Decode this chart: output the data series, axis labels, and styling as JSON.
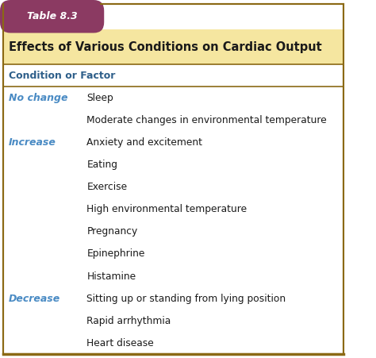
{
  "table_label": "Table 8.3",
  "title": "Effects of Various Conditions on Cardiac Output",
  "col_header": "Condition or Factor",
  "tab_label_bg": "#8B3A62",
  "tab_label_color": "#FFFFFF",
  "title_bg": "#F5E6A0",
  "title_color": "#1A1A1A",
  "header_color": "#2E5F8A",
  "body_bg": "#FFFFFF",
  "condition_color": "#4A8BC4",
  "rows": [
    {
      "condition": "No change",
      "factor": "Sleep"
    },
    {
      "condition": "",
      "factor": "Moderate changes in environmental temperature"
    },
    {
      "condition": "Increase",
      "factor": "Anxiety and excitement"
    },
    {
      "condition": "",
      "factor": "Eating"
    },
    {
      "condition": "",
      "factor": "Exercise"
    },
    {
      "condition": "",
      "factor": "High environmental temperature"
    },
    {
      "condition": "",
      "factor": "Pregnancy"
    },
    {
      "condition": "",
      "factor": "Epinephrine"
    },
    {
      "condition": "",
      "factor": "Histamine"
    },
    {
      "condition": "Decrease",
      "factor": "Sitting up or standing from lying position"
    },
    {
      "condition": "",
      "factor": "Rapid arrhythmia"
    },
    {
      "condition": "",
      "factor": "Heart disease"
    }
  ],
  "border_color": "#8B6914",
  "divider_color": "#8B6914",
  "fig_width": 4.74,
  "fig_height": 4.51,
  "dpi": 100
}
